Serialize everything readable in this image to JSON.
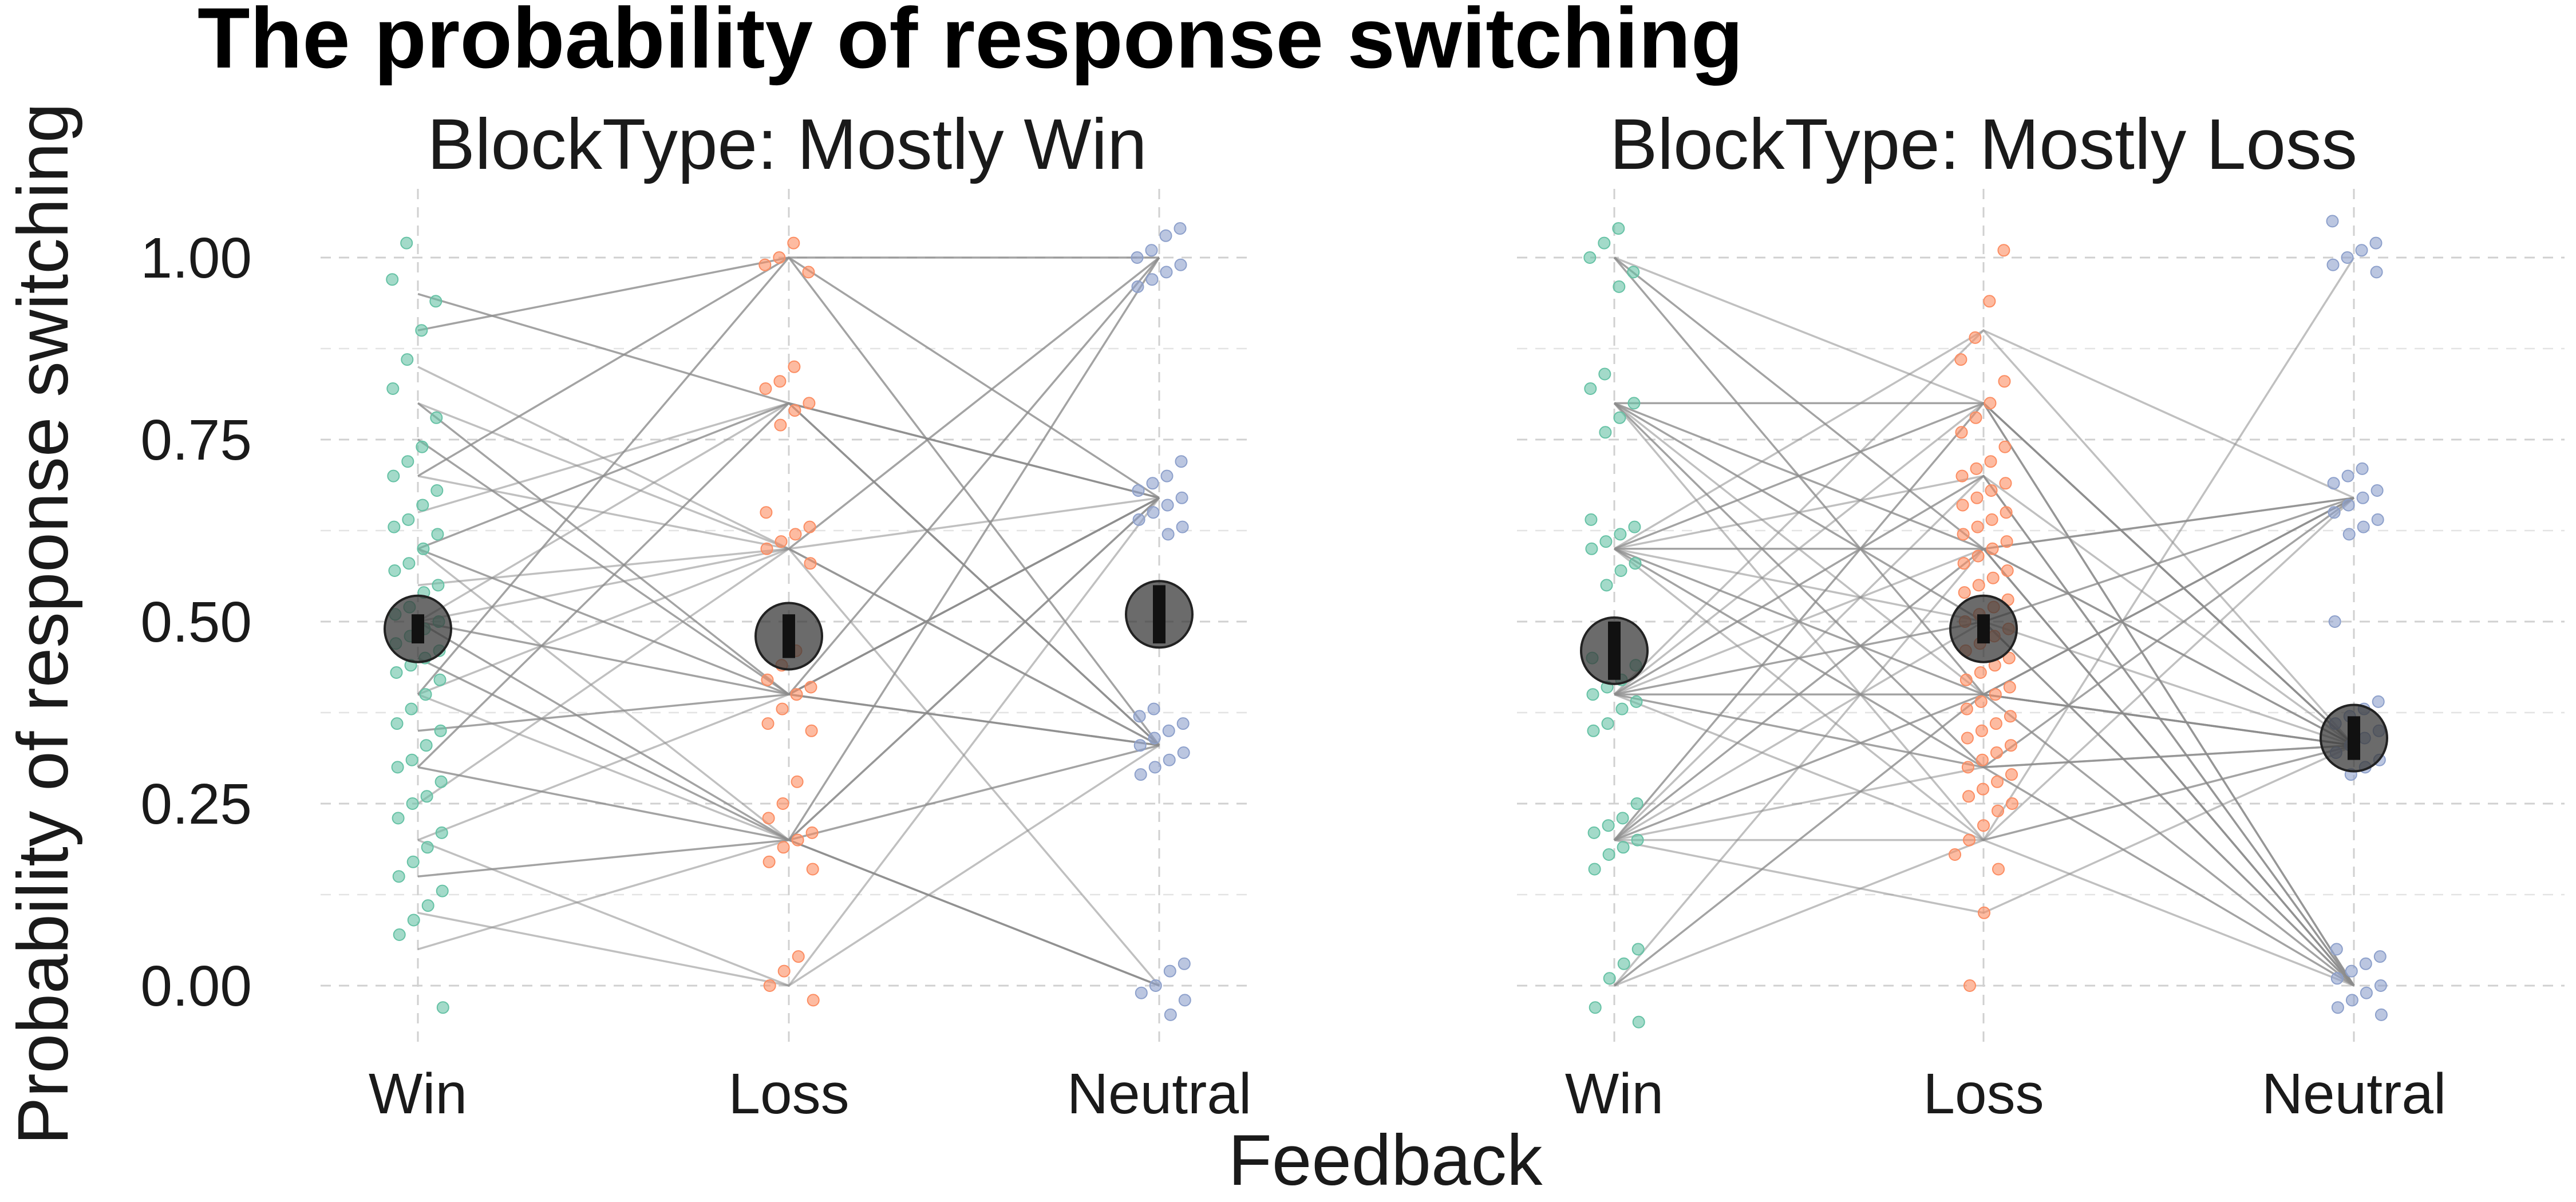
{
  "chart_data": {
    "type": "scatter",
    "title": "The probability of response switching",
    "xlabel": "Feedback",
    "ylabel": "Probability of response switching",
    "ylim": [
      -0.1,
      1.1
    ],
    "y_ticks": [
      "0.00",
      "0.25",
      "0.50",
      "0.75",
      "1.00"
    ],
    "categories": [
      "Win",
      "Loss",
      "Neutral"
    ],
    "grid": true,
    "colors": {
      "Win": "#66c2a5",
      "Loss": "#fc8d62",
      "Neutral": "#8da0cb",
      "lines": "#8c8c8c",
      "mean": "#3a3a3a"
    },
    "panels": [
      {
        "strip": "BlockType: Mostly Win",
        "means": [
          0.49,
          0.48,
          0.51
        ],
        "mean_ci": [
          [
            0.47,
            0.51
          ],
          [
            0.45,
            0.51
          ],
          [
            0.47,
            0.55
          ]
        ],
        "points": {
          "Win": [
            1.02,
            0.97,
            0.94,
            0.9,
            0.86,
            0.82,
            0.78,
            0.74,
            0.72,
            0.7,
            0.68,
            0.66,
            0.64,
            0.63,
            0.62,
            0.6,
            0.58,
            0.57,
            0.55,
            0.54,
            0.52,
            0.51,
            0.5,
            0.49,
            0.48,
            0.47,
            0.46,
            0.45,
            0.44,
            0.43,
            0.42,
            0.4,
            0.38,
            0.36,
            0.35,
            0.33,
            0.31,
            0.3,
            0.28,
            0.26,
            0.25,
            0.23,
            0.21,
            0.19,
            0.17,
            0.15,
            0.13,
            0.11,
            0.09,
            0.07,
            -0.03
          ],
          "Loss": [
            1.02,
            1.0,
            0.99,
            0.98,
            0.85,
            0.83,
            0.82,
            0.8,
            0.79,
            0.77,
            0.65,
            0.63,
            0.62,
            0.61,
            0.6,
            0.58,
            0.46,
            0.44,
            0.42,
            0.41,
            0.4,
            0.38,
            0.36,
            0.35,
            0.28,
            0.25,
            0.23,
            0.21,
            0.2,
            0.19,
            0.17,
            0.16,
            0.04,
            0.02,
            0.0,
            -0.02
          ],
          "Neutral": [
            1.04,
            1.03,
            1.01,
            1.0,
            0.99,
            0.98,
            0.97,
            0.96,
            0.72,
            0.7,
            0.69,
            0.68,
            0.67,
            0.66,
            0.65,
            0.64,
            0.63,
            0.62,
            0.38,
            0.37,
            0.36,
            0.35,
            0.34,
            0.33,
            0.32,
            0.31,
            0.3,
            0.29,
            0.03,
            0.02,
            0.0,
            -0.01,
            -0.02,
            -0.04
          ]
        },
        "lines": [
          [
            0.7,
            1.0,
            1.0
          ],
          [
            0.5,
            0.8,
            0.67
          ],
          [
            0.6,
            0.4,
            0.33
          ],
          [
            0.4,
            0.6,
            0.67
          ],
          [
            0.3,
            0.2,
            1.0
          ],
          [
            0.8,
            0.6,
            0.33
          ],
          [
            0.5,
            0.2,
            0.0
          ],
          [
            0.2,
            0.4,
            0.67
          ],
          [
            0.9,
            1.0,
            0.33
          ],
          [
            0.1,
            0.0,
            0.67
          ],
          [
            0.6,
            0.8,
            0.33
          ],
          [
            0.4,
            0.2,
            0.67
          ],
          [
            0.5,
            0.4,
            1.0
          ],
          [
            0.7,
            0.6,
            0.0
          ],
          [
            0.3,
            0.8,
            0.33
          ],
          [
            0.2,
            0.0,
            0.33
          ],
          [
            0.8,
            0.4,
            0.67
          ],
          [
            0.6,
            0.2,
            0.33
          ],
          [
            0.4,
            1.0,
            0.67
          ],
          [
            0.5,
            0.6,
            0.33
          ],
          [
            0.15,
            0.2,
            0.0
          ],
          [
            0.65,
            0.8,
            0.67
          ],
          [
            0.35,
            0.4,
            0.33
          ],
          [
            0.55,
            0.6,
            1.0
          ],
          [
            0.45,
            0.2,
            0.67
          ],
          [
            0.25,
            0.6,
            0.33
          ],
          [
            0.75,
            0.4,
            0.67
          ],
          [
            0.05,
            0.2,
            0.33
          ],
          [
            0.95,
            0.8,
            0.67
          ],
          [
            0.85,
            0.6,
            1.0
          ]
        ]
      },
      {
        "strip": "BlockType: Mostly Loss",
        "means": [
          0.46,
          0.49,
          0.34
        ],
        "mean_ci": [
          [
            0.42,
            0.5
          ],
          [
            0.47,
            0.51
          ],
          [
            0.31,
            0.37
          ]
        ],
        "points": {
          "Win": [
            1.04,
            1.02,
            1.0,
            0.98,
            0.96,
            0.84,
            0.82,
            0.8,
            0.78,
            0.76,
            0.64,
            0.63,
            0.62,
            0.61,
            0.6,
            0.58,
            0.57,
            0.55,
            0.45,
            0.44,
            0.42,
            0.41,
            0.4,
            0.39,
            0.38,
            0.36,
            0.35,
            0.25,
            0.23,
            0.22,
            0.21,
            0.2,
            0.19,
            0.18,
            0.16,
            0.05,
            0.03,
            0.01,
            -0.03,
            -0.05
          ],
          "Loss": [
            1.01,
            0.94,
            0.89,
            0.86,
            0.83,
            0.8,
            0.78,
            0.76,
            0.74,
            0.72,
            0.71,
            0.7,
            0.69,
            0.68,
            0.67,
            0.66,
            0.65,
            0.64,
            0.63,
            0.62,
            0.61,
            0.6,
            0.59,
            0.58,
            0.57,
            0.56,
            0.55,
            0.54,
            0.53,
            0.52,
            0.51,
            0.5,
            0.49,
            0.48,
            0.47,
            0.46,
            0.45,
            0.44,
            0.43,
            0.42,
            0.41,
            0.4,
            0.39,
            0.38,
            0.37,
            0.36,
            0.35,
            0.34,
            0.33,
            0.32,
            0.31,
            0.3,
            0.29,
            0.28,
            0.27,
            0.26,
            0.25,
            0.24,
            0.22,
            0.2,
            0.18,
            0.16,
            0.1,
            0.0
          ],
          "Neutral": [
            1.05,
            1.02,
            1.01,
            1.0,
            0.99,
            0.98,
            0.71,
            0.7,
            0.69,
            0.68,
            0.67,
            0.66,
            0.65,
            0.64,
            0.63,
            0.62,
            0.5,
            0.39,
            0.38,
            0.37,
            0.36,
            0.35,
            0.34,
            0.33,
            0.32,
            0.31,
            0.3,
            0.29,
            0.05,
            0.04,
            0.03,
            0.02,
            0.01,
            0.0,
            -0.01,
            -0.02,
            -0.03,
            -0.04
          ]
        },
        "lines": [
          [
            1.0,
            0.6,
            0.0
          ],
          [
            0.8,
            0.4,
            0.33
          ],
          [
            0.6,
            0.8,
            0.0
          ],
          [
            0.4,
            0.6,
            0.33
          ],
          [
            0.2,
            0.4,
            0.67
          ],
          [
            0.0,
            0.2,
            1.0
          ],
          [
            0.6,
            0.6,
            0.33
          ],
          [
            0.4,
            0.8,
            0.0
          ],
          [
            0.2,
            0.8,
            0.33
          ],
          [
            0.8,
            0.2,
            0.67
          ],
          [
            0.6,
            0.4,
            0.0
          ],
          [
            0.4,
            0.2,
            0.33
          ],
          [
            0.2,
            0.6,
            0.0
          ],
          [
            1.0,
            0.8,
            0.33
          ],
          [
            0.8,
            0.6,
            0.67
          ],
          [
            0.6,
            0.2,
            0.33
          ],
          [
            0.4,
            0.4,
            0.67
          ],
          [
            0.2,
            0.2,
            0.0
          ],
          [
            0.0,
            0.4,
            0.33
          ],
          [
            0.6,
            0.9,
            0.67
          ],
          [
            0.4,
            0.7,
            0.0
          ],
          [
            0.2,
            0.5,
            0.33
          ],
          [
            0.8,
            0.3,
            0.0
          ],
          [
            0.6,
            0.7,
            0.33
          ],
          [
            0.4,
            0.5,
            0.67
          ],
          [
            0.2,
            0.3,
            0.33
          ],
          [
            1.0,
            0.4,
            0.33
          ],
          [
            0.0,
            0.6,
            0.67
          ],
          [
            0.8,
            0.8,
            0.33
          ],
          [
            0.6,
            0.5,
            0.0
          ],
          [
            0.4,
            0.3,
            0.33
          ],
          [
            0.2,
            0.7,
            0.0
          ],
          [
            0.6,
            0.3,
            0.67
          ],
          [
            0.4,
            0.9,
            0.33
          ],
          [
            0.8,
            0.5,
            0.0
          ],
          [
            0.2,
            0.1,
            0.33
          ]
        ]
      }
    ]
  }
}
